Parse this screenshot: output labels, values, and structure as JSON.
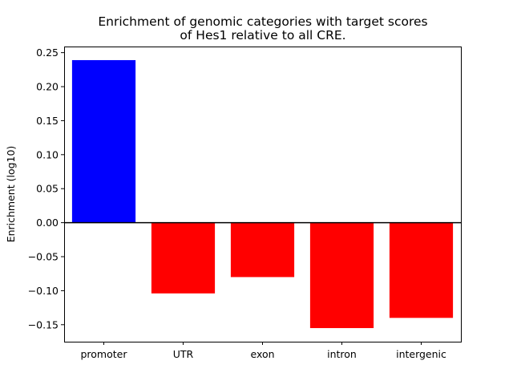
{
  "chart_data": {
    "type": "bar",
    "title": "Enrichment of genomic categories with target scores\nof Hes1 relative to all CRE.",
    "xlabel": "",
    "ylabel": "Enrichment (log10)",
    "categories": [
      "promoter",
      "UTR",
      "exon",
      "intron",
      "intergenic"
    ],
    "values": [
      0.239,
      -0.104,
      -0.08,
      -0.155,
      -0.14
    ],
    "colors": [
      "#0000ff",
      "#ff0000",
      "#ff0000",
      "#ff0000",
      "#ff0000"
    ],
    "ylim": [
      -0.175,
      0.259
    ],
    "yticks": [
      -0.15,
      -0.1,
      -0.05,
      0.0,
      0.05,
      0.1,
      0.15,
      0.2,
      0.25
    ],
    "ytick_labels": [
      "−0.15",
      "−0.10",
      "−0.05",
      "0.00",
      "0.05",
      "0.10",
      "0.15",
      "0.20",
      "0.25"
    ],
    "zero_line": true,
    "grid": false,
    "legend": "none"
  }
}
